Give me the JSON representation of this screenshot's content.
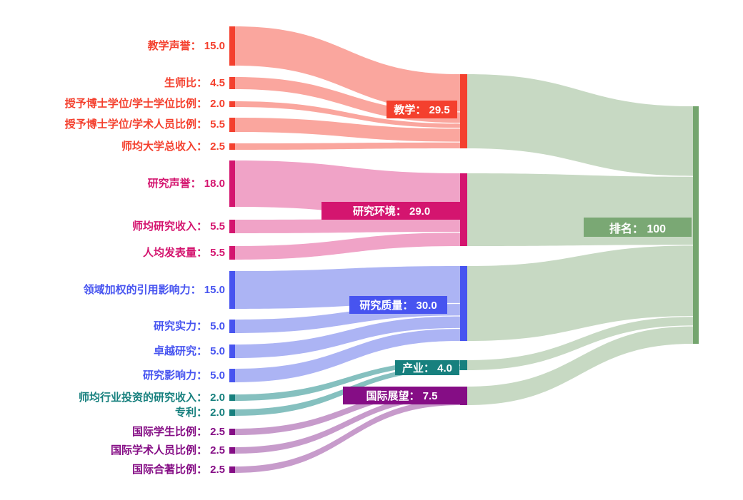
{
  "chart_data": {
    "type": "sankey",
    "title": "",
    "separator": "： ",
    "legend": "none",
    "grid": false,
    "columns": 3,
    "groups": [
      {
        "name": "teaching",
        "color": "#F4402E",
        "flow_color": "#FAA69E",
        "target": {
          "label": "教学",
          "value": 29.5,
          "value_display": "29.5"
        },
        "sources": [
          {
            "label": "教学声誉",
            "value": 15.0,
            "value_display": "15.0"
          },
          {
            "label": "生师比",
            "value": 4.5,
            "value_display": "4.5"
          },
          {
            "label": "授予博士学位/学士学位比例",
            "value": 2.0,
            "value_display": "2.0"
          },
          {
            "label": "授予博士学位/学术人员比例",
            "value": 5.5,
            "value_display": "5.5"
          },
          {
            "label": "师均大学总收入",
            "value": 2.5,
            "value_display": "2.5"
          }
        ]
      },
      {
        "name": "research-environment",
        "color": "#D4156F",
        "flow_color": "#F0A3C7",
        "target": {
          "label": "研究环境",
          "value": 29.0,
          "value_display": "29.0"
        },
        "sources": [
          {
            "label": "研究声誉",
            "value": 18.0,
            "value_display": "18.0"
          },
          {
            "label": "师均研究收入",
            "value": 5.5,
            "value_display": "5.5"
          },
          {
            "label": "人均发表量",
            "value": 5.5,
            "value_display": "5.5"
          }
        ]
      },
      {
        "name": "research-quality",
        "color": "#4754F0",
        "flow_color": "#ACB4F4",
        "target": {
          "label": "研究质量",
          "value": 30.0,
          "value_display": "30.0"
        },
        "sources": [
          {
            "label": "领域加权的引用影响力",
            "value": 15.0,
            "value_display": "15.0"
          },
          {
            "label": "研究实力",
            "value": 5.0,
            "value_display": "5.0"
          },
          {
            "label": "卓越研究",
            "value": 5.0,
            "value_display": "5.0"
          },
          {
            "label": "研究影响力",
            "value": 5.0,
            "value_display": "5.0"
          }
        ]
      },
      {
        "name": "industry",
        "color": "#17807E",
        "flow_color": "#85C0BF",
        "target": {
          "label": "产业",
          "value": 4.0,
          "value_display": "4.0"
        },
        "sources": [
          {
            "label": "师均行业投资的研究收入",
            "value": 2.0,
            "value_display": "2.0"
          },
          {
            "label": "专利",
            "value": 2.0,
            "value_display": "2.0"
          }
        ]
      },
      {
        "name": "international-outlook",
        "color": "#850D85",
        "flow_color": "#C79BCB",
        "target": {
          "label": "国际展望",
          "value": 7.5,
          "value_display": "7.5"
        },
        "sources": [
          {
            "label": "国际学生比例",
            "value": 2.5,
            "value_display": "2.5"
          },
          {
            "label": "国际学术人员比例",
            "value": 2.5,
            "value_display": "2.5"
          },
          {
            "label": "国际合著比例",
            "value": 2.5,
            "value_display": "2.5"
          }
        ]
      }
    ],
    "final_node": {
      "name": "ranking",
      "label": "排名",
      "value": 100,
      "value_display": "100",
      "color": "#74A56E",
      "label_bg": "#7AA874",
      "flow_color": "#C7D9C3"
    }
  }
}
